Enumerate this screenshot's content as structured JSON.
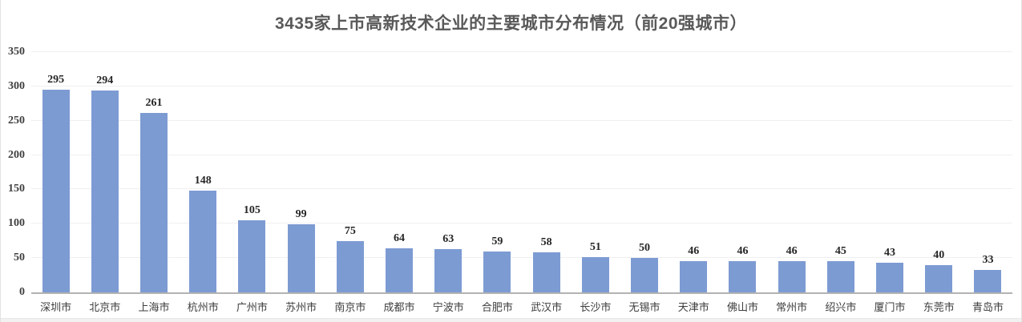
{
  "chart_data": {
    "type": "bar",
    "title": "3435家上市高新技术企业的主要城市分布情况（前20强城市）",
    "categories": [
      "深圳市",
      "北京市",
      "上海市",
      "杭州市",
      "广州市",
      "苏州市",
      "南京市",
      "成都市",
      "宁波市",
      "合肥市",
      "武汉市",
      "长沙市",
      "无锡市",
      "天津市",
      "佛山市",
      "常州市",
      "绍兴市",
      "厦门市",
      "东莞市",
      "青岛市"
    ],
    "values": [
      295,
      294,
      261,
      148,
      105,
      99,
      75,
      64,
      63,
      59,
      58,
      51,
      50,
      46,
      46,
      46,
      45,
      43,
      40,
      33
    ],
    "xlabel": "",
    "ylabel": "",
    "ylim": [
      0,
      350
    ],
    "yticks": [
      0,
      50,
      100,
      150,
      200,
      250,
      300,
      350
    ],
    "grid": true,
    "legend": false,
    "data_labels": true,
    "colors": {
      "bar": "#7d9bd3",
      "grid": "#efefef",
      "axis_line": "#b3b3b3",
      "title": "#595959",
      "data_label": "#262626",
      "tick_label": "#404040",
      "category_label": "#3d3d3d"
    }
  }
}
